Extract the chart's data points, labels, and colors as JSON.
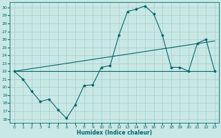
{
  "bg_color": "#c8e8e5",
  "grid_color": "#a8cccb",
  "line_color": "#006666",
  "xlabel": "Humidex (Indice chaleur)",
  "xlim": [
    -0.5,
    23.5
  ],
  "ylim": [
    15.5,
    30.7
  ],
  "xticks": [
    0,
    1,
    2,
    3,
    4,
    5,
    6,
    7,
    8,
    9,
    10,
    11,
    12,
    13,
    14,
    15,
    16,
    17,
    18,
    19,
    20,
    21,
    22,
    23
  ],
  "yticks": [
    16,
    17,
    18,
    19,
    20,
    21,
    22,
    23,
    24,
    25,
    26,
    27,
    28,
    29,
    30
  ],
  "line1_x": [
    0,
    1,
    2,
    3,
    4,
    5,
    6,
    7,
    8,
    9,
    10,
    11,
    12,
    13,
    14,
    15,
    16,
    17,
    18,
    19,
    20,
    21,
    22,
    23
  ],
  "line1_y": [
    22.0,
    21.0,
    19.5,
    18.2,
    18.5,
    17.2,
    16.1,
    17.8,
    20.2,
    20.3,
    22.5,
    22.7,
    26.5,
    29.5,
    29.8,
    30.2,
    29.2,
    26.5,
    22.5,
    22.5,
    22.0,
    25.5,
    26.0,
    22.0
  ],
  "line2_x": [
    0,
    23
  ],
  "line2_y": [
    22.0,
    22.0
  ],
  "line3_x": [
    0,
    23
  ],
  "line3_y": [
    22.0,
    25.8
  ]
}
